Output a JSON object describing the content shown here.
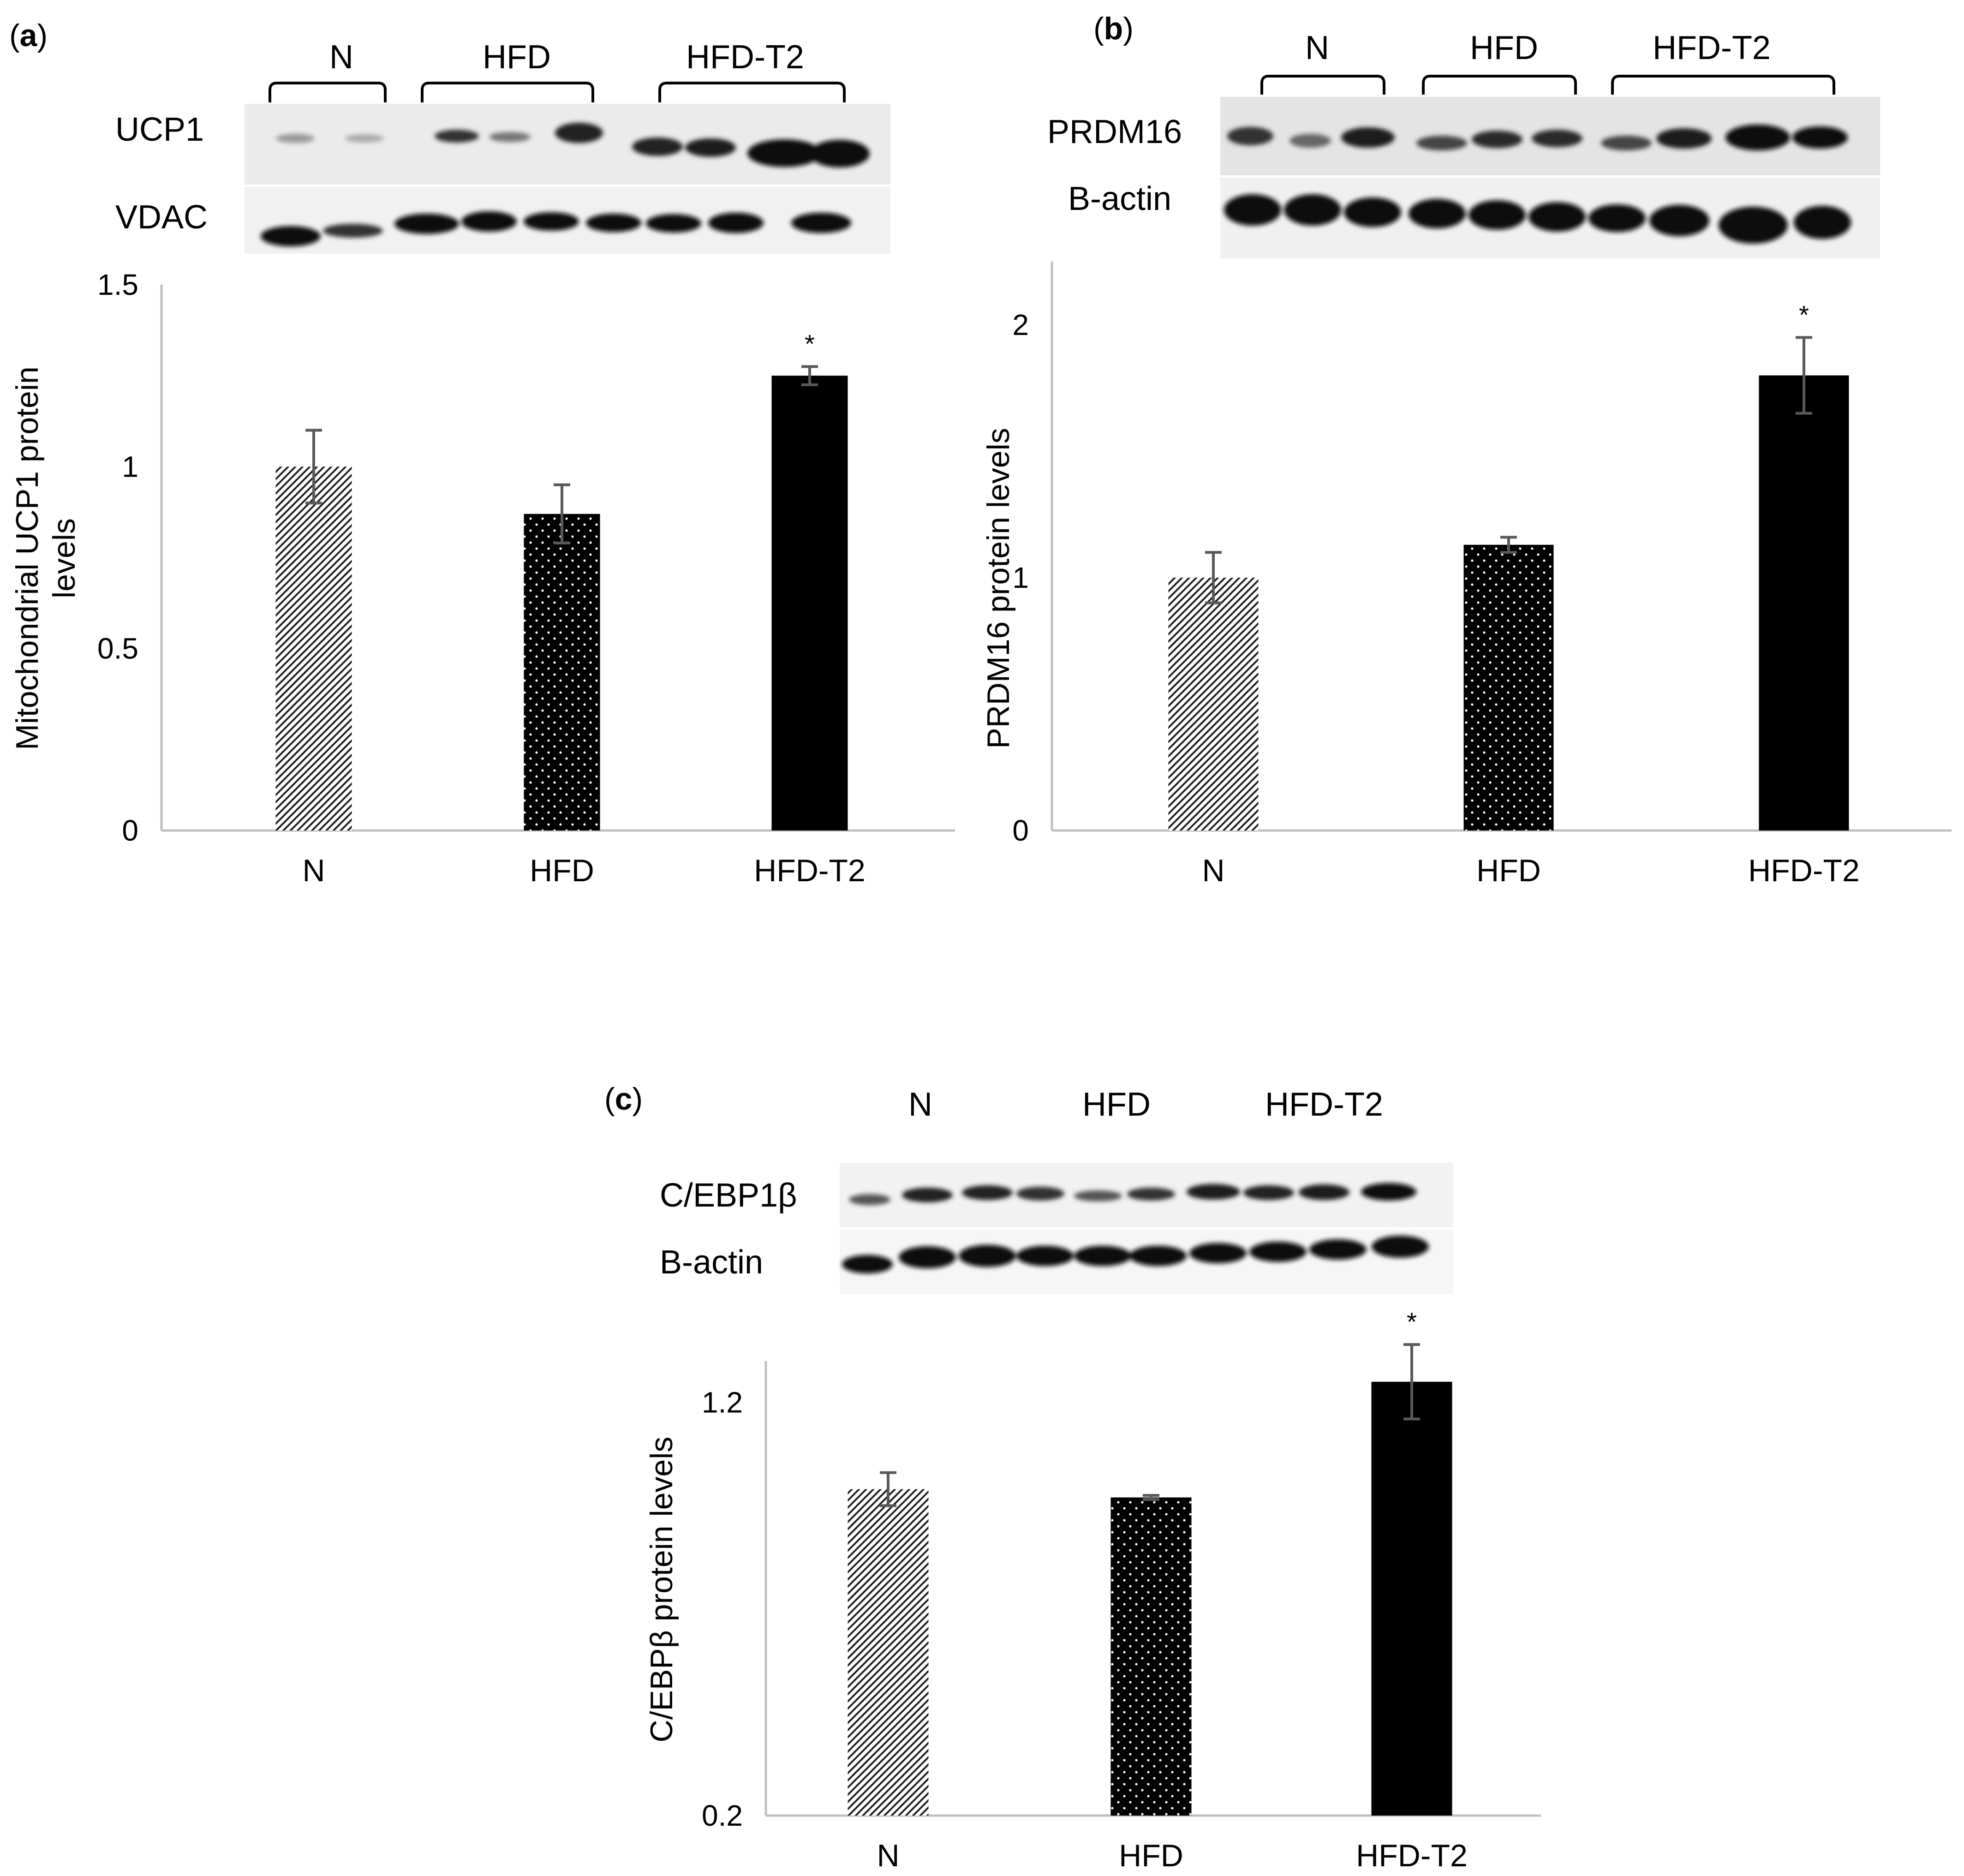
{
  "panels": [
    {
      "label": "(a)",
      "label_letter": "a",
      "blot": {
        "groups": [
          "N",
          "HFD",
          "HFD-T2"
        ],
        "bracketed": true,
        "rows": [
          "UCP1",
          "VDAC"
        ]
      },
      "star": "*"
    },
    {
      "label": "(b)",
      "label_letter": "b",
      "blot": {
        "groups": [
          "N",
          "HFD",
          "HFD-T2"
        ],
        "bracketed": true,
        "rows": [
          "PRDM16",
          "B-actin"
        ]
      },
      "star": "*"
    },
    {
      "label": "(c)",
      "label_letter": "c",
      "blot": {
        "groups": [
          "N",
          "HFD",
          "HFD-T2"
        ],
        "bracketed": false,
        "rows": [
          "C/EBP1β",
          "B-actin"
        ]
      },
      "star": "*"
    }
  ],
  "colors": {
    "axis": "#bfbfbf",
    "bar_solid": "#000000",
    "pattern_fill": "#ffffff",
    "error_bar": "#595959",
    "blot_band": "#111111",
    "blot_bg": "#e9e9e9"
  },
  "chart_data": [
    {
      "type": "bar",
      "title": "",
      "xlabel": "",
      "ylabel": "Mitochondrial UCP1 protein levels",
      "ylabel_lines": [
        "Mitochondrial UCP1 protein",
        "levels"
      ],
      "categories": [
        "N",
        "HFD",
        "HFD-T2"
      ],
      "values": [
        1.0,
        0.87,
        1.25
      ],
      "errors": [
        0.1,
        0.08,
        0.025
      ],
      "significance": [
        "",
        "",
        "*"
      ],
      "fill_patterns": [
        "diagonal-hatch",
        "dots",
        "solid"
      ],
      "ylim": [
        0,
        1.5
      ],
      "yticks": [
        0,
        0.5,
        1,
        1.5
      ],
      "ytick_labels": [
        "0",
        "0.5",
        "1",
        "1.5"
      ],
      "grid": false,
      "legend": "none"
    },
    {
      "type": "bar",
      "title": "",
      "xlabel": "",
      "ylabel": "PRDM16 protein levels",
      "ylabel_lines": [
        "PRDM16 protein levels"
      ],
      "categories": [
        "N",
        "HFD",
        "HFD-T2"
      ],
      "values": [
        1.0,
        1.13,
        1.8
      ],
      "errors": [
        0.1,
        0.03,
        0.15
      ],
      "significance": [
        "",
        "",
        "*"
      ],
      "fill_patterns": [
        "diagonal-hatch",
        "dots",
        "solid"
      ],
      "ylim": [
        0,
        2.25
      ],
      "yticks": [
        0,
        1,
        2
      ],
      "ytick_labels": [
        "0",
        "1",
        "2"
      ],
      "grid": false,
      "legend": "none"
    },
    {
      "type": "bar",
      "title": "",
      "xlabel": "",
      "ylabel": "C/EBPβ protein levels",
      "ylabel_lines": [
        "C/EBPβ protein levels"
      ],
      "categories": [
        "N",
        "HFD",
        "HFD-T2"
      ],
      "values": [
        0.99,
        0.97,
        1.25
      ],
      "errors": [
        0.04,
        0.005,
        0.09
      ],
      "significance": [
        "",
        "",
        "*"
      ],
      "fill_patterns": [
        "diagonal-hatch",
        "dots",
        "solid"
      ],
      "ylim": [
        0.2,
        1.3
      ],
      "yticks": [
        0.2,
        1.2
      ],
      "ytick_labels": [
        "0.2",
        "1.2"
      ],
      "grid": false,
      "legend": "none"
    }
  ]
}
